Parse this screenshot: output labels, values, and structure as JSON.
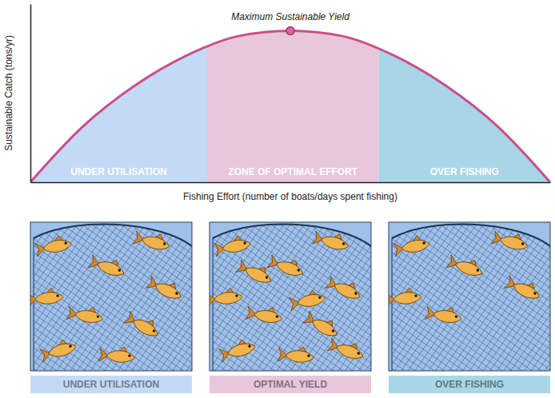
{
  "chart_data": {
    "type": "line",
    "x_label": "Fishing Effort (number of boats/days spent fishing)",
    "y_label": "Sustainable Catch (tons/yr)",
    "x": [
      0,
      10,
      20,
      30,
      40,
      50,
      60,
      70,
      80,
      90,
      100
    ],
    "values": [
      0,
      31,
      54,
      71,
      82,
      85,
      82,
      71,
      54,
      31,
      0
    ],
    "color": "#c8508a",
    "xlim": [
      0,
      100
    ],
    "ylim": [
      0,
      100
    ],
    "tick_labels": false,
    "annotations": [
      {
        "text": "Maximum Sustainable Yield",
        "x": 50,
        "y": 85
      }
    ],
    "zones": [
      {
        "label": "UNDER UTILISATION",
        "x0": 0,
        "x1": 34,
        "color": "#c3daf6"
      },
      {
        "label": "ZONE OF OPTIMAL EFFORT",
        "x0": 34,
        "x1": 67,
        "color": "#e8c6db"
      },
      {
        "label": "OVER FISHING",
        "x0": 67,
        "x1": 100,
        "color": "#a8d6e6"
      }
    ]
  },
  "panels": [
    {
      "label": "UNDER UTILISATION",
      "color": "#c3daf6",
      "fish_count": 9
    },
    {
      "label": "OPTIMAL YIELD",
      "color": "#e8c6db",
      "fish_count": 12
    },
    {
      "label": "OVER FISHING",
      "color": "#a8d6e6",
      "fish_count": 6
    }
  ]
}
